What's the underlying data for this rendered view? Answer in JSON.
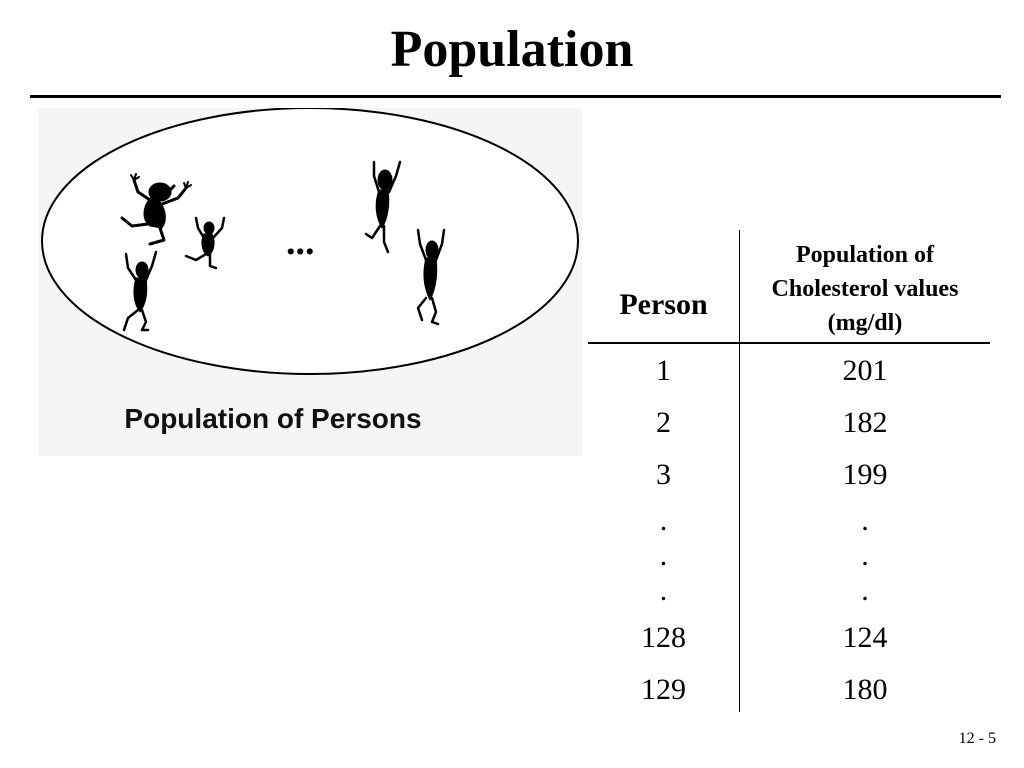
{
  "slide": {
    "title": "Population",
    "page_number": "12 - 5"
  },
  "figure": {
    "caption": "Population of Persons",
    "ellipsis": "..."
  },
  "table": {
    "header_person": "Person",
    "header_values": [
      "Population of",
      "Cholesterol values",
      "(mg/dl)"
    ],
    "rows": [
      {
        "person": "1",
        "value": "201"
      },
      {
        "person": "2",
        "value": "182"
      },
      {
        "person": "3",
        "value": "199"
      },
      {
        "person": ".",
        "value": "."
      },
      {
        "person": ".",
        "value": "."
      },
      {
        "person": ".",
        "value": "."
      },
      {
        "person": "128",
        "value": "124"
      },
      {
        "person": "129",
        "value": "180"
      }
    ]
  }
}
